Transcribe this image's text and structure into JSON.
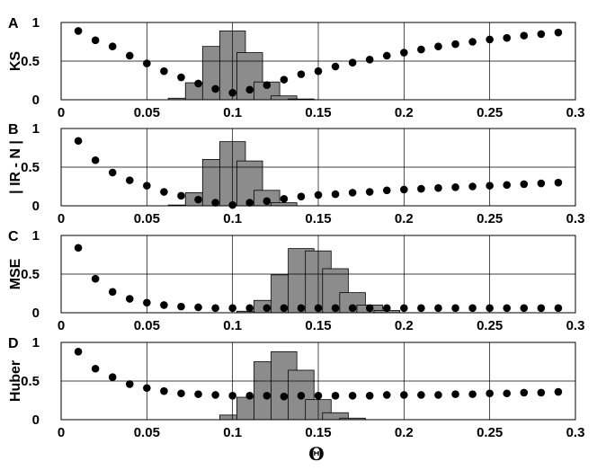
{
  "chart_data": [
    {
      "type": "bar",
      "panel_letter": "A",
      "ylabel": "KS",
      "xlim": [
        0,
        0.3
      ],
      "ylim": [
        0,
        1
      ],
      "xticks": [
        "0",
        "0.05",
        "0.1",
        "0.15",
        "0.2",
        "0.25",
        "0.3"
      ],
      "yticks": [
        "0",
        "0.5",
        "1"
      ],
      "grid": true,
      "bars": {
        "x": [
          0.07,
          0.08,
          0.09,
          0.1,
          0.11,
          0.12,
          0.13,
          0.14
        ],
        "values": [
          0.02,
          0.22,
          0.69,
          0.89,
          0.61,
          0.23,
          0.05,
          0.01
        ]
      },
      "points": {
        "x": [
          0.01,
          0.02,
          0.03,
          0.04,
          0.05,
          0.06,
          0.07,
          0.08,
          0.09,
          0.1,
          0.11,
          0.12,
          0.13,
          0.14,
          0.15,
          0.16,
          0.17,
          0.18,
          0.19,
          0.2,
          0.21,
          0.22,
          0.23,
          0.24,
          0.25,
          0.26,
          0.27,
          0.28,
          0.29
        ],
        "y": [
          0.89,
          0.77,
          0.69,
          0.57,
          0.47,
          0.37,
          0.29,
          0.21,
          0.14,
          0.09,
          0.13,
          0.19,
          0.26,
          0.33,
          0.37,
          0.43,
          0.48,
          0.52,
          0.57,
          0.61,
          0.65,
          0.69,
          0.72,
          0.75,
          0.78,
          0.8,
          0.83,
          0.85,
          0.87
        ]
      }
    },
    {
      "type": "bar",
      "panel_letter": "B",
      "ylabel": "| IR - N |",
      "xlim": [
        0,
        0.3
      ],
      "ylim": [
        0,
        1
      ],
      "xticks": [
        "0",
        "0.05",
        "0.1",
        "0.15",
        "0.2",
        "0.25",
        "0.3"
      ],
      "yticks": [
        "0",
        "0.5",
        "1"
      ],
      "grid": true,
      "bars": {
        "x": [
          0.07,
          0.08,
          0.09,
          0.1,
          0.11,
          0.12,
          0.13
        ],
        "values": [
          0.01,
          0.17,
          0.6,
          0.83,
          0.58,
          0.2,
          0.04
        ]
      },
      "points": {
        "x": [
          0.01,
          0.02,
          0.03,
          0.04,
          0.05,
          0.06,
          0.07,
          0.08,
          0.09,
          0.1,
          0.11,
          0.12,
          0.13,
          0.14,
          0.15,
          0.16,
          0.17,
          0.18,
          0.19,
          0.2,
          0.21,
          0.22,
          0.23,
          0.24,
          0.25,
          0.26,
          0.27,
          0.28,
          0.29
        ],
        "y": [
          0.84,
          0.59,
          0.43,
          0.33,
          0.26,
          0.18,
          0.13,
          0.08,
          0.04,
          0.01,
          0.04,
          0.06,
          0.09,
          0.12,
          0.14,
          0.15,
          0.17,
          0.18,
          0.2,
          0.21,
          0.22,
          0.23,
          0.24,
          0.25,
          0.26,
          0.27,
          0.28,
          0.29,
          0.3
        ]
      }
    },
    {
      "type": "bar",
      "panel_letter": "C",
      "ylabel": "MSE",
      "xlim": [
        0,
        0.3
      ],
      "ylim": [
        0,
        1
      ],
      "xticks": [
        "0",
        "0.05",
        "0.1",
        "0.15",
        "0.2",
        "0.25",
        "0.3"
      ],
      "yticks": [
        "0",
        "0.5",
        "1"
      ],
      "grid": true,
      "bars": {
        "x": [
          0.11,
          0.12,
          0.13,
          0.14,
          0.15,
          0.16,
          0.17,
          0.18,
          0.19
        ],
        "values": [
          0.02,
          0.16,
          0.49,
          0.83,
          0.8,
          0.57,
          0.26,
          0.1,
          0.03
        ]
      },
      "points": {
        "x": [
          0.01,
          0.02,
          0.03,
          0.04,
          0.05,
          0.06,
          0.07,
          0.08,
          0.09,
          0.1,
          0.11,
          0.12,
          0.13,
          0.14,
          0.15,
          0.16,
          0.17,
          0.18,
          0.19,
          0.2,
          0.21,
          0.22,
          0.23,
          0.24,
          0.25,
          0.26,
          0.27,
          0.28,
          0.29
        ],
        "y": [
          0.84,
          0.44,
          0.27,
          0.18,
          0.13,
          0.1,
          0.08,
          0.07,
          0.06,
          0.06,
          0.06,
          0.06,
          0.06,
          0.06,
          0.06,
          0.06,
          0.06,
          0.06,
          0.06,
          0.06,
          0.06,
          0.06,
          0.06,
          0.06,
          0.06,
          0.06,
          0.06,
          0.06,
          0.06
        ]
      }
    },
    {
      "type": "bar",
      "panel_letter": "D",
      "ylabel": "Huber",
      "xlim": [
        0,
        0.3
      ],
      "ylim": [
        0,
        1
      ],
      "xticks": [
        "0",
        "0.05",
        "0.1",
        "0.15",
        "0.2",
        "0.25",
        "0.3"
      ],
      "yticks": [
        "0",
        "0.5",
        "1"
      ],
      "grid": true,
      "bars": {
        "x": [
          0.1,
          0.11,
          0.12,
          0.13,
          0.14,
          0.15,
          0.16,
          0.17
        ],
        "values": [
          0.06,
          0.29,
          0.75,
          0.88,
          0.64,
          0.26,
          0.09,
          0.02
        ]
      },
      "points": {
        "x": [
          0.01,
          0.02,
          0.03,
          0.04,
          0.05,
          0.06,
          0.07,
          0.08,
          0.09,
          0.1,
          0.11,
          0.12,
          0.13,
          0.14,
          0.15,
          0.16,
          0.17,
          0.18,
          0.19,
          0.2,
          0.21,
          0.22,
          0.23,
          0.24,
          0.25,
          0.26,
          0.27,
          0.28,
          0.29
        ],
        "y": [
          0.88,
          0.66,
          0.55,
          0.46,
          0.41,
          0.37,
          0.34,
          0.33,
          0.32,
          0.31,
          0.31,
          0.31,
          0.3,
          0.31,
          0.31,
          0.31,
          0.31,
          0.31,
          0.32,
          0.32,
          0.32,
          0.32,
          0.33,
          0.33,
          0.34,
          0.34,
          0.35,
          0.35,
          0.36
        ]
      }
    }
  ],
  "xlabel": "Θ",
  "colors": {
    "bar_fill": "#8c8c8c",
    "point": "#000000",
    "axis": "#000000"
  }
}
